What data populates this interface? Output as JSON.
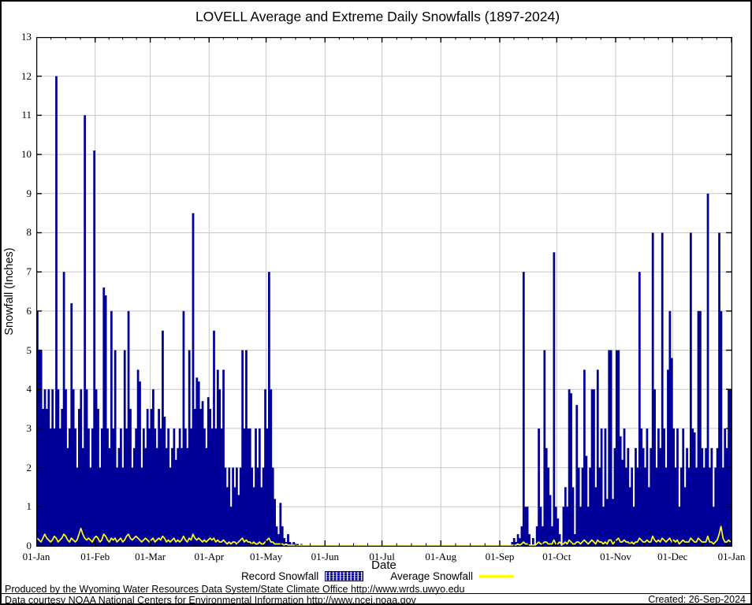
{
  "title": "LOVELL Average and Extreme Daily Snowfalls (1897-2024)",
  "y_axis": {
    "label": "Snowfall (Inches)",
    "ticks": [
      0,
      1,
      2,
      3,
      4,
      5,
      6,
      7,
      8,
      9,
      10,
      11,
      12,
      13
    ]
  },
  "x_axis": {
    "label": "Date",
    "ticks": [
      "01-Jan",
      "01-Feb",
      "01-Mar",
      "01-Apr",
      "01-May",
      "01-Jun",
      "01-Jul",
      "01-Aug",
      "01-Sep",
      "01-Oct",
      "01-Nov",
      "01-Dec",
      "01-Jan"
    ]
  },
  "legend": {
    "record_label": "Record Snowfall",
    "average_label": "Average Snowfall"
  },
  "footer": {
    "line1": "Produced by the Wyoming Water Resources Data System/State Climate Office http://www.wrds.uwyo.edu",
    "line2": "Data courtesy NOAA National Centers for Environmental Information http://www.ncei.noaa.gov",
    "created": "Created: 26-Sep-2024"
  },
  "colors": {
    "record": "#000099",
    "average": "#ffff00",
    "grid": "#c8c8c8",
    "axis": "#000000"
  },
  "chart_data": {
    "type": "bar",
    "title": "LOVELL Average and Extreme Daily Snowfalls (1897-2024)",
    "xlabel": "Date",
    "ylabel": "Snowfall (Inches)",
    "ylim": [
      0,
      13
    ],
    "grid": true,
    "legend_position": "bottom",
    "x_unit": "day_of_year",
    "days_in_year": 366,
    "month_ticks": [
      "01-Jan",
      "01-Feb",
      "01-Mar",
      "01-Apr",
      "01-May",
      "01-Jun",
      "01-Jul",
      "01-Aug",
      "01-Sep",
      "01-Oct",
      "01-Nov",
      "01-Dec",
      "01-Jan"
    ],
    "month_start_days": [
      0,
      31,
      60,
      91,
      121,
      152,
      182,
      213,
      244,
      274,
      305,
      335,
      366
    ],
    "series": [
      {
        "name": "Record Snowfall",
        "type": "bar",
        "color": "#000099",
        "values": [
          6,
          5,
          5,
          3.5,
          4,
          3.5,
          4,
          3,
          4,
          3,
          12,
          4,
          3,
          3.5,
          7,
          4,
          2.5,
          3,
          6.2,
          4,
          3,
          2,
          3.5,
          4,
          2.5,
          11,
          4,
          3,
          2,
          3,
          10.1,
          4,
          3.5,
          2,
          3,
          6.6,
          6.4,
          3,
          2.5,
          6,
          3,
          5,
          2,
          2.5,
          3,
          2,
          5,
          3,
          6,
          3.5,
          2,
          2.5,
          3,
          4.5,
          4.2,
          2,
          3,
          2.5,
          3.5,
          3,
          3.5,
          4,
          3,
          2.5,
          3.5,
          3,
          5.5,
          3.3,
          2.5,
          3,
          2,
          2.5,
          3,
          2.2,
          2.5,
          3,
          2.5,
          6,
          3,
          2.5,
          5,
          3,
          8.5,
          3.5,
          4.3,
          4.2,
          3.5,
          3.7,
          3,
          2.5,
          3.8,
          3.5,
          3,
          5.5,
          3,
          4.5,
          4,
          3,
          4.5,
          2,
          1.5,
          2,
          1,
          2,
          1.5,
          2,
          1.3,
          2,
          5,
          3,
          5,
          3,
          3,
          2,
          1.5,
          3,
          2,
          3,
          1.5,
          2,
          4,
          3,
          7,
          4,
          2,
          1.2,
          0.5,
          0.3,
          1.1,
          0.5,
          0.2,
          0.1,
          0.3,
          0.1,
          0.05,
          0.1,
          0,
          0.05,
          0,
          0.05,
          0,
          0,
          0,
          0,
          0,
          0,
          0,
          0,
          0,
          0,
          0,
          0,
          0,
          0,
          0,
          0,
          0,
          0,
          0,
          0,
          0,
          0,
          0,
          0,
          0,
          0,
          0,
          0,
          0,
          0,
          0,
          0,
          0,
          0,
          0,
          0,
          0,
          0,
          0,
          0,
          0,
          0,
          0,
          0,
          0,
          0,
          0,
          0,
          0,
          0,
          0,
          0,
          0,
          0,
          0,
          0,
          0,
          0,
          0,
          0,
          0,
          0,
          0,
          0,
          0,
          0,
          0,
          0,
          0,
          0,
          0,
          0,
          0,
          0,
          0,
          0,
          0,
          0,
          0,
          0,
          0,
          0,
          0,
          0,
          0,
          0,
          0,
          0,
          0,
          0,
          0,
          0,
          0,
          0,
          0,
          0,
          0,
          0,
          0,
          0,
          0,
          0,
          0,
          0,
          0,
          0,
          0,
          0,
          0,
          0,
          0.1,
          0.2,
          0.1,
          0.3,
          0.2,
          0.5,
          7,
          1,
          1,
          0.3,
          0,
          0.2,
          0,
          0.5,
          3,
          1,
          0.5,
          5,
          2.5,
          2,
          1.3,
          0.5,
          7.5,
          1,
          0.7,
          0.3,
          0,
          1,
          1.5,
          1,
          4,
          3.9,
          1.5,
          0.3,
          3.6,
          2,
          1,
          2,
          4.5,
          2.3,
          1,
          2,
          4,
          4,
          1.5,
          4.5,
          2,
          3,
          1,
          3,
          1.2,
          5,
          5,
          1.2,
          2.5,
          5,
          5,
          2.8,
          2.2,
          3,
          2,
          2.5,
          1.5,
          2,
          1,
          2.5,
          2,
          7,
          3,
          2.5,
          2,
          3,
          1.5,
          2.5,
          8,
          4,
          2,
          3,
          2.5,
          8,
          3,
          2,
          4.5,
          6,
          4.8,
          3,
          2,
          3,
          1,
          2,
          3,
          1.5,
          2.5,
          2,
          8,
          3,
          2.9,
          2,
          6,
          6,
          2.5,
          2,
          2.5,
          9,
          2,
          2.5,
          1,
          2,
          2.5,
          8,
          6,
          2,
          3,
          2.5,
          4,
          4
        ]
      },
      {
        "name": "Average Snowfall",
        "type": "line",
        "color": "#ffff00",
        "values": [
          0.2,
          0.15,
          0.1,
          0.2,
          0.3,
          0.2,
          0.15,
          0.1,
          0.15,
          0.25,
          0.2,
          0.1,
          0.15,
          0.2,
          0.3,
          0.25,
          0.15,
          0.1,
          0.2,
          0.15,
          0.1,
          0.15,
          0.3,
          0.45,
          0.3,
          0.2,
          0.15,
          0.2,
          0.15,
          0.1,
          0.2,
          0.25,
          0.2,
          0.1,
          0.15,
          0.3,
          0.25,
          0.15,
          0.1,
          0.2,
          0.15,
          0.2,
          0.1,
          0.15,
          0.2,
          0.1,
          0.15,
          0.25,
          0.3,
          0.2,
          0.15,
          0.2,
          0.25,
          0.2,
          0.15,
          0.1,
          0.15,
          0.2,
          0.15,
          0.1,
          0.15,
          0.2,
          0.1,
          0.15,
          0.2,
          0.15,
          0.25,
          0.2,
          0.1,
          0.15,
          0.1,
          0.15,
          0.2,
          0.1,
          0.15,
          0.1,
          0.15,
          0.25,
          0.15,
          0.1,
          0.2,
          0.15,
          0.3,
          0.2,
          0.15,
          0.2,
          0.15,
          0.1,
          0.15,
          0.1,
          0.15,
          0.2,
          0.15,
          0.2,
          0.1,
          0.15,
          0.1,
          0.1,
          0.15,
          0.1,
          0.05,
          0.1,
          0.05,
          0.1,
          0.1,
          0.05,
          0.1,
          0.15,
          0.2,
          0.1,
          0.15,
          0.1,
          0.1,
          0.05,
          0.1,
          0.05,
          0.05,
          0.1,
          0.05,
          0.05,
          0.1,
          0.15,
          0.2,
          0.1,
          0.1,
          0.05,
          0.05,
          0.05,
          0.05,
          0.05,
          0.02,
          0.05,
          0.02,
          0.02,
          0.02,
          0.02,
          0,
          0,
          0,
          0.02,
          0,
          0,
          0,
          0,
          0,
          0,
          0,
          0,
          0,
          0,
          0,
          0,
          0,
          0,
          0,
          0,
          0,
          0,
          0,
          0,
          0,
          0,
          0,
          0,
          0,
          0,
          0,
          0,
          0,
          0,
          0,
          0,
          0,
          0,
          0,
          0,
          0,
          0,
          0,
          0,
          0,
          0,
          0,
          0,
          0,
          0,
          0,
          0,
          0,
          0,
          0,
          0,
          0,
          0,
          0,
          0,
          0,
          0,
          0,
          0,
          0,
          0,
          0,
          0,
          0,
          0,
          0,
          0,
          0,
          0,
          0,
          0,
          0,
          0,
          0,
          0,
          0,
          0,
          0,
          0,
          0,
          0,
          0,
          0,
          0,
          0,
          0,
          0,
          0,
          0,
          0,
          0,
          0,
          0,
          0,
          0,
          0,
          0,
          0,
          0,
          0,
          0,
          0,
          0,
          0,
          0,
          0,
          0,
          0,
          0,
          0.02,
          0.02,
          0.02,
          0.05,
          0.02,
          0.05,
          0.1,
          0.05,
          0.05,
          0.02,
          0.02,
          0.02,
          0.02,
          0.05,
          0.1,
          0.05,
          0.05,
          0.1,
          0.1,
          0.05,
          0.05,
          0.05,
          0.15,
          0.05,
          0.05,
          0.1,
          0.05,
          0.05,
          0.1,
          0.05,
          0.15,
          0.1,
          0.05,
          0.05,
          0.1,
          0.1,
          0.05,
          0.1,
          0.15,
          0.1,
          0.05,
          0.1,
          0.15,
          0.1,
          0.05,
          0.15,
          0.1,
          0.1,
          0.05,
          0.1,
          0.05,
          0.15,
          0.15,
          0.05,
          0.1,
          0.15,
          0.2,
          0.1,
          0.1,
          0.15,
          0.1,
          0.1,
          0.05,
          0.1,
          0.05,
          0.1,
          0.1,
          0.2,
          0.15,
          0.1,
          0.1,
          0.15,
          0.1,
          0.1,
          0.25,
          0.15,
          0.1,
          0.15,
          0.1,
          0.2,
          0.15,
          0.1,
          0.15,
          0.2,
          0.1,
          0.15,
          0.1,
          0.15,
          0.05,
          0.1,
          0.15,
          0.1,
          0.1,
          0.1,
          0.2,
          0.15,
          0.1,
          0.1,
          0.2,
          0.15,
          0.1,
          0.1,
          0.1,
          0.25,
          0.1,
          0.1,
          0.05,
          0.1,
          0.15,
          0.3,
          0.5,
          0.2,
          0.1,
          0.1,
          0.15,
          0.1
        ]
      }
    ]
  }
}
